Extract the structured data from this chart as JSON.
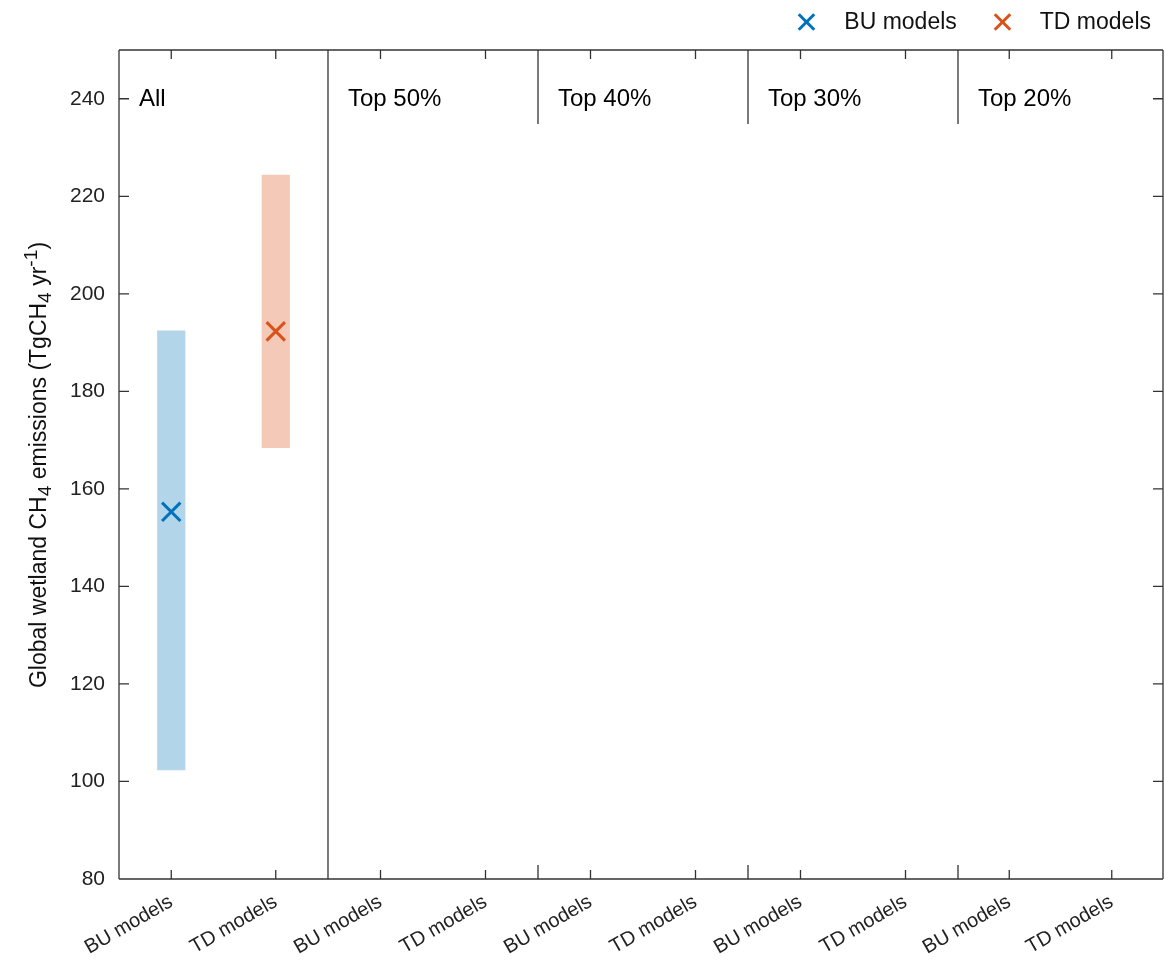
{
  "chart_data": [
    {
      "type": "bar",
      "title": "All",
      "categories": [
        "BU models",
        "TD models"
      ],
      "ylabel": "Global wetland CH$_{4}$ emissions (TgCH$_{4}$ yr$^{-1}$)",
      "ylim": [
        80,
        250
      ],
      "yticks": [
        80,
        100,
        120,
        140,
        160,
        180,
        200,
        220,
        240
      ],
      "legend": "top right",
      "marker": "cross",
      "tick_labels": "xy",
      "series": [
        {
          "colors": [
            "#b3d5ea",
            "#f4c9b8"
          ],
          "base": [
            102.3,
            168.4
          ],
          "values": [
            90.2,
            56.0
          ]
        },
        {
          "type": "scatter",
          "name": "BU models",
          "color": "#0072bd",
          "x": [
            "BU models"
          ],
          "values": [
            155.3
          ]
        },
        {
          "type": "scatter",
          "name": "TD models",
          "color": "#d95319",
          "x": [
            "TD models"
          ],
          "values": [
            192.3
          ]
        }
      ]
    },
    {
      "type": "bar",
      "title": "Top 50%",
      "categories": [
        "BU models",
        "TD models"
      ],
      "ylim": [
        80,
        250
      ],
      "tick_labels": "x",
      "values": [
        null,
        null
      ]
    },
    {
      "type": "bar",
      "title": "Top 40%",
      "categories": [
        "BU models",
        "TD models"
      ],
      "ylim": [
        80,
        250
      ],
      "tick_labels": "x",
      "values": [
        null,
        null
      ]
    },
    {
      "type": "bar",
      "title": "Top 30%",
      "categories": [
        "BU models",
        "TD models"
      ],
      "ylim": [
        80,
        250
      ],
      "tick_labels": "x",
      "values": [
        null,
        null
      ]
    },
    {
      "type": "bar",
      "title": "Top 20%",
      "categories": [
        "BU models",
        "TD models"
      ],
      "ylim": [
        80,
        250
      ],
      "yticks": [
        80,
        100,
        120,
        140,
        160,
        180,
        200,
        220,
        240
      ],
      "tick_labels": "x",
      "values": [
        null,
        null
      ]
    }
  ]
}
